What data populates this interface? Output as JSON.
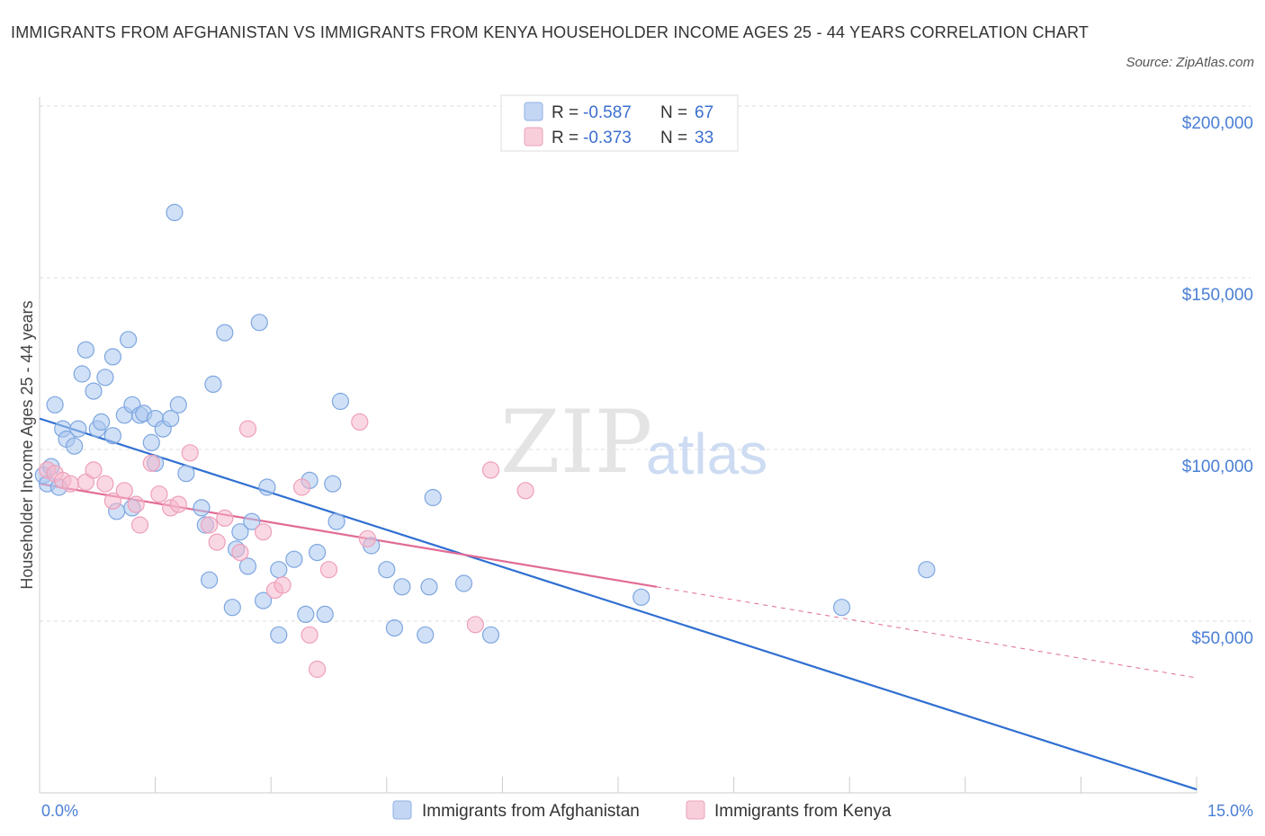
{
  "title": "IMMIGRANTS FROM AFGHANISTAN VS IMMIGRANTS FROM KENYA HOUSEHOLDER INCOME AGES 25 - 44 YEARS CORRELATION CHART",
  "source": "Source: ZipAtlas.com",
  "watermark": {
    "zip": "ZIP",
    "atlas": "atlas"
  },
  "colors": {
    "afghanistan": "#a9c6ef",
    "afghanistan_line": "#2f6fd1",
    "kenya": "#f6b8cc",
    "kenya_line": "#e26b95"
  },
  "legend": {
    "r_label": "R =",
    "n_label": "N =",
    "rows": [
      {
        "r": "-0.587",
        "n": "67"
      },
      {
        "r": "-0.373",
        "n": "33"
      }
    ]
  },
  "chart_data": {
    "type": "scatter",
    "ylabel": "Householder Income Ages 25 - 44 years",
    "xlim": [
      0,
      15
    ],
    "ylim": [
      0,
      200000
    ],
    "x_tick_labels": [
      "0.0%",
      "15.0%"
    ],
    "y_tick_labels": [
      "$50,000",
      "$100,000",
      "$150,000",
      "$200,000"
    ],
    "y_ticks": [
      50000,
      100000,
      150000,
      200000
    ],
    "grid": true,
    "legend_position": "bottom",
    "series": [
      {
        "name": "Immigrants from Afghanistan",
        "trend": {
          "x0": 0.0,
          "y0": 109000,
          "x1": 15.0,
          "y1": 1000
        },
        "points": [
          [
            0.05,
            92500
          ],
          [
            0.1,
            90000
          ],
          [
            0.15,
            95000
          ],
          [
            0.2,
            113000
          ],
          [
            0.25,
            89000
          ],
          [
            0.3,
            106000
          ],
          [
            0.35,
            103000
          ],
          [
            0.45,
            101000
          ],
          [
            0.5,
            106000
          ],
          [
            0.55,
            122000
          ],
          [
            0.6,
            129000
          ],
          [
            0.7,
            117000
          ],
          [
            0.75,
            106000
          ],
          [
            0.8,
            108000
          ],
          [
            0.85,
            121000
          ],
          [
            0.95,
            104000
          ],
          [
            0.95,
            127000
          ],
          [
            1.0,
            82000
          ],
          [
            1.1,
            110000
          ],
          [
            1.15,
            132000
          ],
          [
            1.2,
            83000
          ],
          [
            1.2,
            113000
          ],
          [
            1.3,
            110000
          ],
          [
            1.35,
            110500
          ],
          [
            1.45,
            102000
          ],
          [
            1.5,
            96000
          ],
          [
            1.5,
            109000
          ],
          [
            1.6,
            106000
          ],
          [
            1.7,
            109000
          ],
          [
            1.75,
            169000
          ],
          [
            1.8,
            113000
          ],
          [
            1.9,
            93000
          ],
          [
            2.1,
            83000
          ],
          [
            2.15,
            78000
          ],
          [
            2.2,
            62000
          ],
          [
            2.25,
            119000
          ],
          [
            2.4,
            134000
          ],
          [
            2.5,
            54000
          ],
          [
            2.55,
            71000
          ],
          [
            2.6,
            76000
          ],
          [
            2.7,
            66000
          ],
          [
            2.75,
            79000
          ],
          [
            2.85,
            137000
          ],
          [
            2.9,
            56000
          ],
          [
            2.95,
            89000
          ],
          [
            3.1,
            46000
          ],
          [
            3.1,
            65000
          ],
          [
            3.3,
            68000
          ],
          [
            3.45,
            52000
          ],
          [
            3.5,
            91000
          ],
          [
            3.6,
            70000
          ],
          [
            3.7,
            52000
          ],
          [
            3.8,
            90000
          ],
          [
            3.85,
            79000
          ],
          [
            3.9,
            114000
          ],
          [
            4.3,
            72000
          ],
          [
            4.5,
            65000
          ],
          [
            4.6,
            48000
          ],
          [
            4.7,
            60000
          ],
          [
            5.0,
            46000
          ],
          [
            5.05,
            60000
          ],
          [
            5.1,
            86000
          ],
          [
            5.5,
            61000
          ],
          [
            5.85,
            46000
          ],
          [
            7.8,
            57000
          ],
          [
            10.4,
            54000
          ],
          [
            11.5,
            65000
          ]
        ]
      },
      {
        "name": "Immigrants from Kenya",
        "trend": {
          "x0": 0.0,
          "y0": 90000,
          "x1": 8.0,
          "y1": 60000,
          "dash_x1": 15.0,
          "dash_y1": 33500
        },
        "points": [
          [
            0.1,
            94000
          ],
          [
            0.2,
            93000
          ],
          [
            0.3,
            91000
          ],
          [
            0.4,
            90000
          ],
          [
            0.6,
            90500
          ],
          [
            0.7,
            94000
          ],
          [
            0.85,
            90000
          ],
          [
            0.95,
            85000
          ],
          [
            1.1,
            88000
          ],
          [
            1.25,
            84000
          ],
          [
            1.3,
            78000
          ],
          [
            1.45,
            96000
          ],
          [
            1.55,
            87000
          ],
          [
            1.7,
            83000
          ],
          [
            1.8,
            84000
          ],
          [
            1.95,
            99000
          ],
          [
            2.2,
            78000
          ],
          [
            2.3,
            73000
          ],
          [
            2.4,
            80000
          ],
          [
            2.6,
            70000
          ],
          [
            2.7,
            106000
          ],
          [
            2.9,
            76000
          ],
          [
            3.05,
            59000
          ],
          [
            3.15,
            60500
          ],
          [
            3.4,
            89000
          ],
          [
            3.5,
            46000
          ],
          [
            3.6,
            36000
          ],
          [
            3.75,
            65000
          ],
          [
            4.15,
            108000
          ],
          [
            4.25,
            74000
          ],
          [
            5.65,
            49000
          ],
          [
            5.85,
            94000
          ],
          [
            6.3,
            88000
          ]
        ]
      }
    ]
  }
}
